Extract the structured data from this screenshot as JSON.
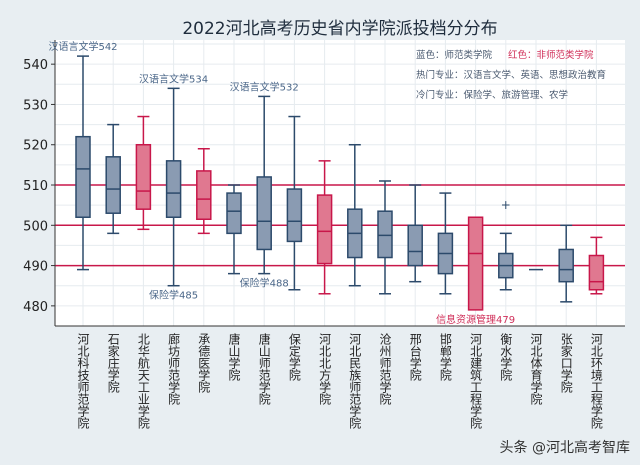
{
  "chart_data": {
    "type": "box",
    "title": "2022河北高考历史省内学院派投档分分布",
    "ylim": [
      475,
      546
    ],
    "yticks": [
      480,
      490,
      500,
      510,
      520,
      530,
      540
    ],
    "grid": true,
    "reference_lines": [
      490,
      500,
      510
    ],
    "colors": {
      "normal": "#8a9bb2",
      "normal_stroke": "#2c4a6b",
      "non_normal": "#e07890",
      "non_normal_stroke": "#c8174a",
      "reference": "#c8174a"
    },
    "categories": [
      "河北科技师范学院",
      "石家庄学院",
      "北华航天工业学院",
      "廊坊师范学院",
      "承德医学院",
      "唐山学院",
      "唐山师范学院",
      "保定学院",
      "河北北方学院",
      "河北民族师范学院",
      "沧州师范学院",
      "邢台学院",
      "邯郸学院",
      "河北建筑工程学院",
      "衡水学院",
      "河北体育学院",
      "张家口学院",
      "河北环境工程学院"
    ],
    "boxes": [
      {
        "group": "师范",
        "min": 489,
        "q1": 502,
        "median": 514,
        "q3": 522,
        "max": 542
      },
      {
        "group": "师范",
        "min": 498,
        "q1": 503,
        "median": 509,
        "q3": 517,
        "max": 525
      },
      {
        "group": "非师范",
        "min": 499,
        "q1": 504,
        "median": 508.5,
        "q3": 520,
        "max": 527
      },
      {
        "group": "师范",
        "min": 485,
        "q1": 502,
        "median": 508,
        "q3": 516,
        "max": 534
      },
      {
        "group": "非师范",
        "min": 498,
        "q1": 501.5,
        "median": 506.5,
        "q3": 513.5,
        "max": 519
      },
      {
        "group": "师范",
        "min": 488,
        "q1": 498,
        "median": 503.5,
        "q3": 508,
        "max": 510
      },
      {
        "group": "师范",
        "min": 488,
        "q1": 494,
        "median": 501,
        "q3": 512,
        "max": 532
      },
      {
        "group": "师范",
        "min": 484,
        "q1": 496,
        "median": 501,
        "q3": 509,
        "max": 527
      },
      {
        "group": "非师范",
        "min": 483,
        "q1": 490.5,
        "median": 498.5,
        "q3": 507.5,
        "max": 516
      },
      {
        "group": "师范",
        "min": 485,
        "q1": 492,
        "median": 498,
        "q3": 504,
        "max": 520
      },
      {
        "group": "师范",
        "min": 483,
        "q1": 492,
        "median": 497.5,
        "q3": 503.5,
        "max": 511
      },
      {
        "group": "师范",
        "min": 486,
        "q1": 490,
        "median": 493.5,
        "q3": 500,
        "max": 510
      },
      {
        "group": "师范",
        "min": 483,
        "q1": 488,
        "median": 493,
        "q3": 498,
        "max": 508
      },
      {
        "group": "非师范",
        "min": 479,
        "q1": 479,
        "median": 493,
        "q3": 502,
        "max": 502
      },
      {
        "group": "师范",
        "min": 484,
        "q1": 487,
        "median": 490,
        "q3": 493,
        "max": 498,
        "outliers": [
          505
        ]
      },
      {
        "group": "师范",
        "min": 489,
        "q1": 489,
        "median": 489,
        "q3": 489,
        "max": 489
      },
      {
        "group": "师范",
        "min": 481,
        "q1": 486,
        "median": 489,
        "q3": 494,
        "max": 500
      },
      {
        "group": "非师范",
        "min": 483,
        "q1": 484,
        "median": 486,
        "q3": 492.5,
        "max": 497
      }
    ],
    "annotations": [
      {
        "text": "汉语言文学542",
        "category": 0,
        "value": 542,
        "position": "above"
      },
      {
        "text": "汉语言文学534",
        "category": 3,
        "value": 534,
        "position": "above"
      },
      {
        "text": "汉语言文学532",
        "category": 6,
        "value": 532,
        "position": "above"
      },
      {
        "text": "保险学485",
        "category": 3,
        "value": 485,
        "position": "below"
      },
      {
        "text": "保险学488",
        "category": 6,
        "value": 488,
        "position": "below"
      },
      {
        "text": "信息资源管理479",
        "category": 13,
        "value": 479,
        "position": "below",
        "color": "red"
      }
    ],
    "legend": {
      "placement": "top-right",
      "blue_label": "蓝色：师范类学院",
      "red_label": "红色：非师范类学院",
      "hot_majors": "热门专业：汉语言文学、英语、思想政治教育",
      "cold_majors": "冷门专业：保险学、旅游管理、农学"
    }
  },
  "watermark": "头条 @河北高考智库"
}
